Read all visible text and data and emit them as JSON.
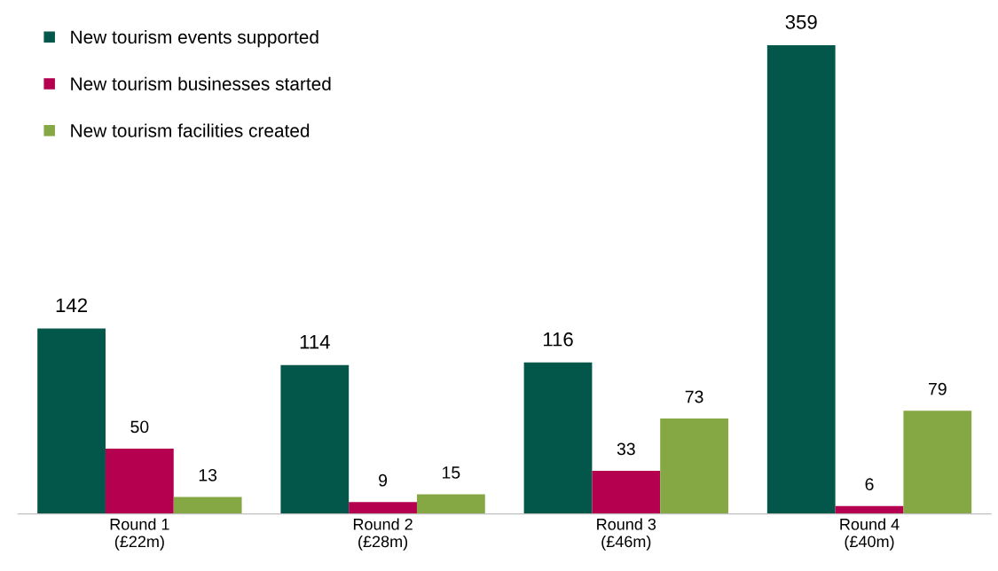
{
  "chart_data": {
    "type": "bar",
    "categories": [
      "Round 1\n(£22m)",
      "Round 2\n(£28m)",
      "Round 3\n(£46m)",
      "Round 4\n(£40m)"
    ],
    "series": [
      {
        "name": "New tourism events supported",
        "color": "#03574a",
        "values": [
          142,
          114,
          116,
          359
        ]
      },
      {
        "name": "New tourism businesses started",
        "color": "#b5004f",
        "values": [
          50,
          9,
          33,
          6
        ]
      },
      {
        "name": "New tourism facilities created",
        "color": "#85a844",
        "values": [
          13,
          15,
          73,
          79
        ]
      }
    ],
    "data_labels": true,
    "legend": "top left",
    "grid": false,
    "tick_labels": "x"
  }
}
